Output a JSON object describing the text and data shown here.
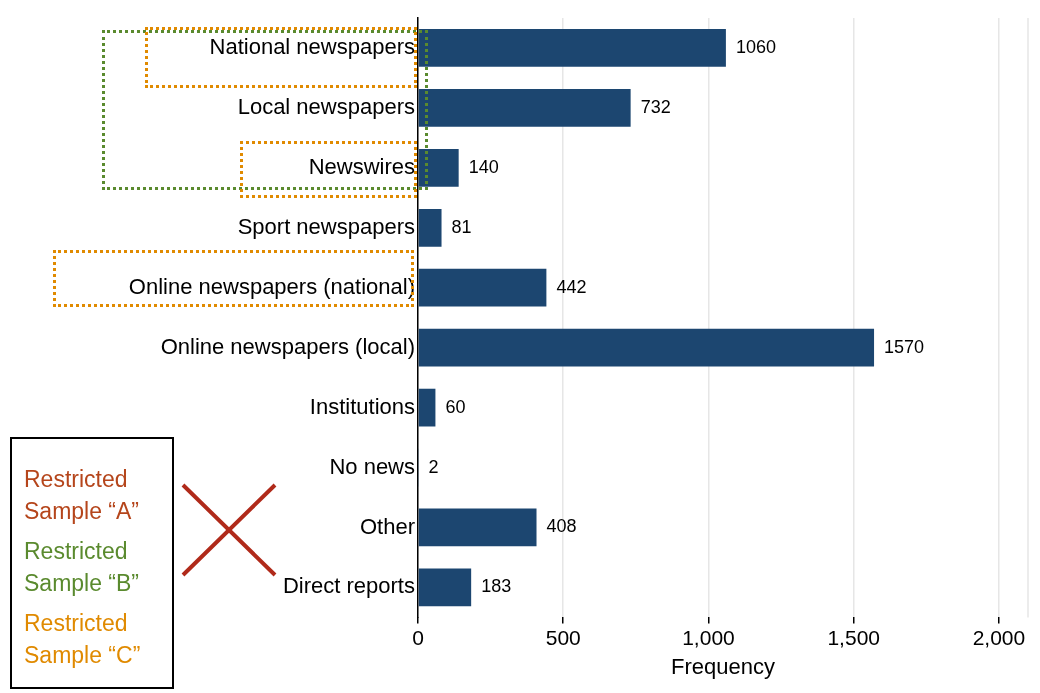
{
  "chart_data": {
    "type": "bar",
    "orientation": "horizontal",
    "xlabel": "Frequency",
    "categories": [
      "National newspapers",
      "Local newspapers",
      "Newswires",
      "Sport newspapers",
      "Online newspapers (national)",
      "Online newspapers (local)",
      "Institutions",
      "No news",
      "Other",
      "Direct reports"
    ],
    "values": [
      1060,
      732,
      140,
      81,
      442,
      1570,
      60,
      2,
      408,
      183
    ],
    "color": "#1c4670",
    "xlim": [
      0,
      2100
    ],
    "xticks": [
      0,
      500,
      {
        "value": 1000,
        "label": "1,000"
      },
      {
        "value": 1500,
        "label": "1,500"
      },
      {
        "value": 2000,
        "label": "2,000"
      }
    ],
    "grid": "x",
    "legend": false,
    "data_labels": true,
    "annotations": [
      "Restricted Sample “A”",
      "Restricted Sample “B”",
      "Restricted Sample “C”"
    ]
  }
}
